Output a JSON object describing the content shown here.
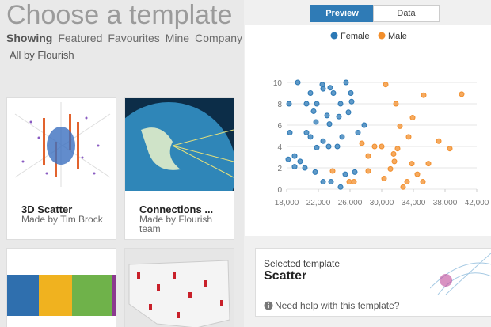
{
  "header": {
    "title": "Choose a template",
    "tabs": [
      "Showing",
      "Featured",
      "Favourites",
      "Mine",
      "Company"
    ],
    "filter": "All by Flourish"
  },
  "cards": [
    {
      "title": "3D Scatter",
      "author": "Made by Tim Brock"
    },
    {
      "title": "Connections ...",
      "author": "Made by Flourish team"
    }
  ],
  "preview": {
    "tabs": [
      "Preview",
      "Data"
    ],
    "chart": {
      "type": "scatter",
      "series": [
        {
          "name": "Female",
          "color": "#2b78b5",
          "x": [
            19400,
            18300,
            21000,
            22500,
            22600,
            25500,
            23500,
            23900,
            20500,
            21800,
            21400,
            24800,
            26100,
            26200,
            23100,
            21700,
            23400,
            24600,
            25800,
            27800,
            20500,
            18400,
            21000,
            22600,
            23300,
            21800,
            24400,
            25000,
            27000,
            19000,
            18200,
            19700,
            20300,
            21600,
            22600,
            23600,
            24800,
            25400,
            26600,
            19000
          ],
          "values": [
            10,
            8,
            9,
            9.8,
            9.4,
            10,
            9.5,
            9,
            8,
            8,
            7.3,
            8,
            9,
            8.2,
            6.9,
            6.3,
            6.1,
            6.8,
            7.2,
            6,
            5.3,
            5.3,
            4.9,
            4.5,
            4,
            3.9,
            4,
            4.9,
            5.3,
            3.1,
            2.8,
            2.6,
            2,
            1.6,
            0.7,
            0.7,
            0.2,
            1.4,
            1.6,
            2.1
          ]
        },
        {
          "name": "Male",
          "color": "#f28e2b",
          "x": [
            30500,
            35300,
            40100,
            31800,
            33900,
            32300,
            33400,
            30000,
            27500,
            29100,
            32000,
            37200,
            38600,
            31500,
            28300,
            31100,
            31600,
            33800,
            34500,
            35200,
            35900,
            33200,
            30300,
            28300,
            23800,
            26500,
            25900,
            32700
          ],
          "values": [
            9.8,
            8.8,
            8.9,
            8,
            6.7,
            5.9,
            4.9,
            4,
            4.3,
            4,
            3.8,
            4.5,
            3.8,
            3.3,
            3.1,
            1.9,
            2.6,
            2.4,
            1.4,
            0.7,
            2.4,
            0.7,
            1,
            1.7,
            1.7,
            0.7,
            0.7,
            0.2
          ]
        }
      ],
      "xlim": [
        17000,
        42000
      ],
      "xticks": [
        {
          "value": 18000,
          "label": "18,000"
        },
        {
          "value": 22000,
          "label": "22,000"
        },
        {
          "value": 26000,
          "label": "26,000"
        },
        {
          "value": 30000,
          "label": "30,000"
        },
        {
          "value": 34000,
          "label": "34,000"
        },
        {
          "value": 38000,
          "label": "38,000"
        },
        {
          "value": 42000,
          "label": "42,000"
        }
      ],
      "ylim": [
        0,
        10
      ],
      "yticks": [
        0,
        2,
        4,
        6,
        8,
        10
      ],
      "grid": true
    }
  },
  "selected": {
    "label": "Selected template",
    "name": "Scatter",
    "help": "Need help with this template?"
  }
}
